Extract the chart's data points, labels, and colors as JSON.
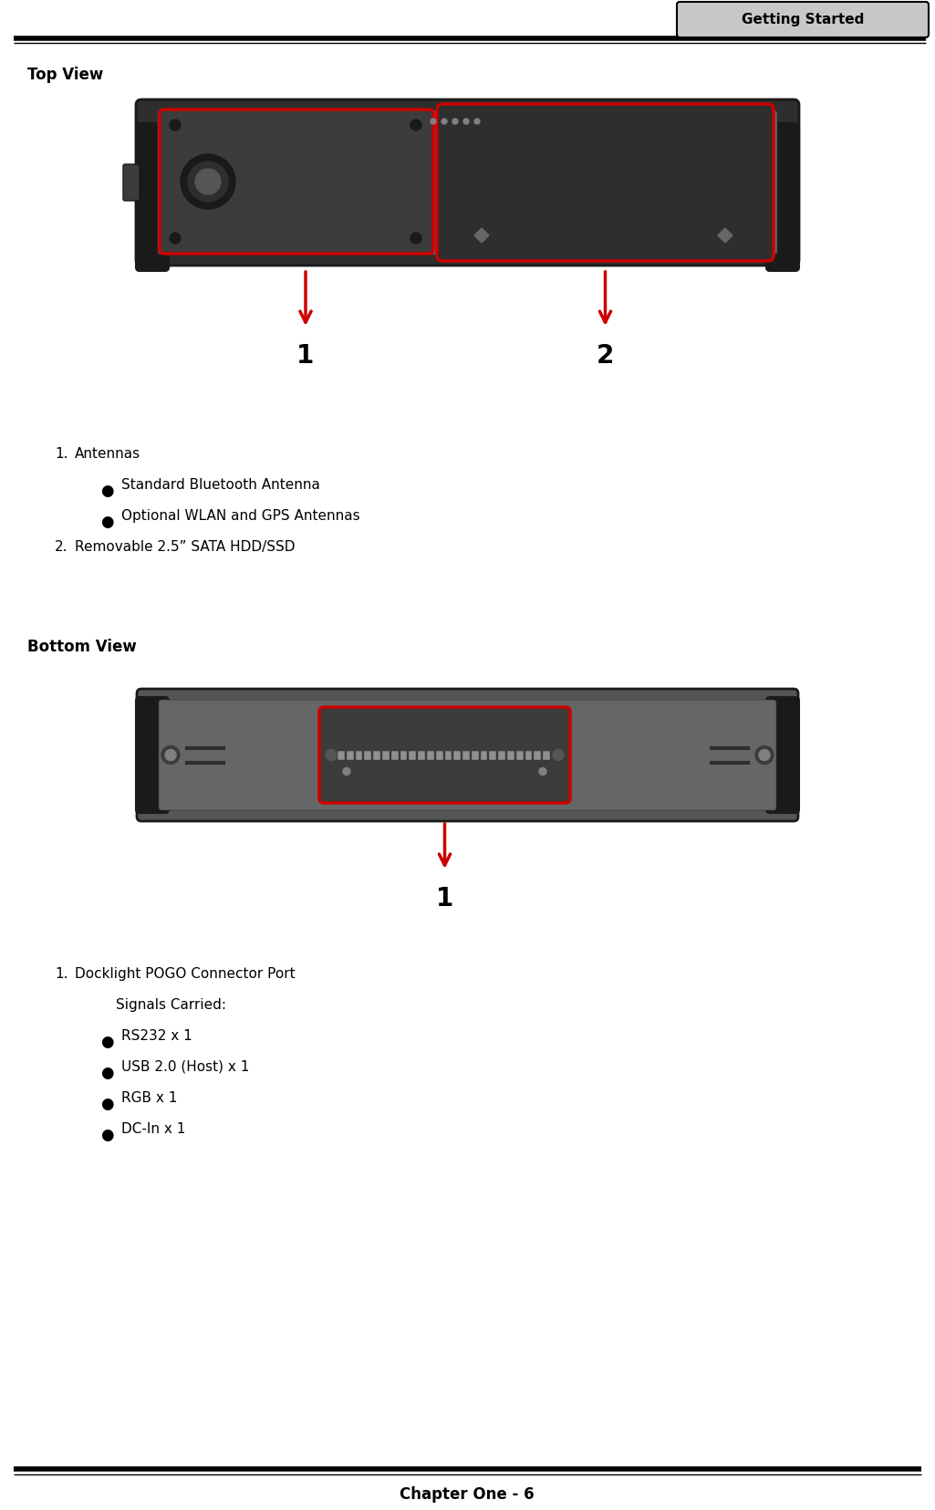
{
  "bg_color": "#ffffff",
  "header_tab_text": "Getting Started",
  "header_tab_bg": "#c8c8c8",
  "footer_text": "Chapter One - 6",
  "section1_title": "Top View",
  "section2_title": "Bottom View",
  "top_list_items": [
    {
      "bullet": "1.",
      "text": "Antennas",
      "indent": 0
    },
    {
      "bullet": "●",
      "text": "Standard Bluetooth Antenna",
      "indent": 1
    },
    {
      "bullet": "●",
      "text": "Optional WLAN and GPS Antennas",
      "indent": 1
    },
    {
      "bullet": "2.",
      "text": "Removable 2.5” SATA HDD/SSD",
      "indent": 0
    }
  ],
  "bottom_list_items": [
    {
      "bullet": "1.",
      "text": "Docklight POGO Connector Port",
      "indent": 0
    },
    {
      "bullet": "",
      "text": "Signals Carried:",
      "indent": 1
    },
    {
      "bullet": "●",
      "text": "RS232 x 1",
      "indent": 1
    },
    {
      "bullet": "●",
      "text": "USB 2.0 (Host) x 1",
      "indent": 1
    },
    {
      "bullet": "●",
      "text": "RGB x 1",
      "indent": 1
    },
    {
      "bullet": "●",
      "text": "DC-In x 1",
      "indent": 1
    }
  ],
  "red_color": "#cc0000",
  "dark1": "#1a1a1a",
  "dark2": "#2e2e2e",
  "dark3": "#3c3c3c",
  "mid1": "#555555",
  "mid2": "#666666",
  "mid3": "#808080",
  "light1": "#909090",
  "light2": "#aaaaaa"
}
